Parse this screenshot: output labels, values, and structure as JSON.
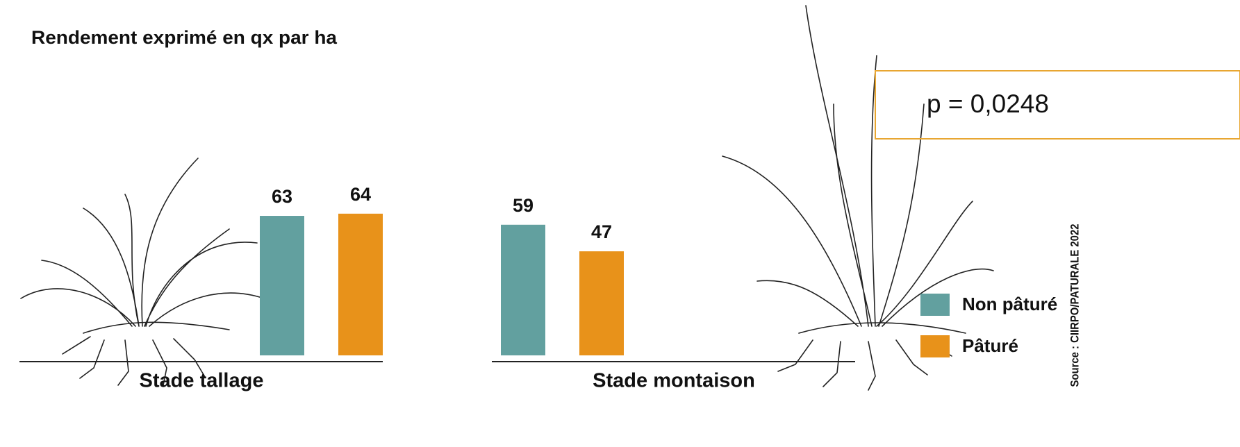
{
  "chart_data": {
    "type": "bar",
    "title": "Rendement exprimé en qx par ha",
    "categories": [
      "Stade tallage",
      "Stade montaison"
    ],
    "series": [
      {
        "name": "Non pâturé",
        "color": "#62a09f",
        "values": [
          63,
          59
        ]
      },
      {
        "name": "Pâturé",
        "color": "#e8921a",
        "values": [
          64,
          47
        ]
      }
    ],
    "annotation": "p = 0,0248",
    "source": "Source : CIIRPO/PATURALE 2022",
    "annotation_border_color": "#e8a631",
    "legend": "right"
  }
}
